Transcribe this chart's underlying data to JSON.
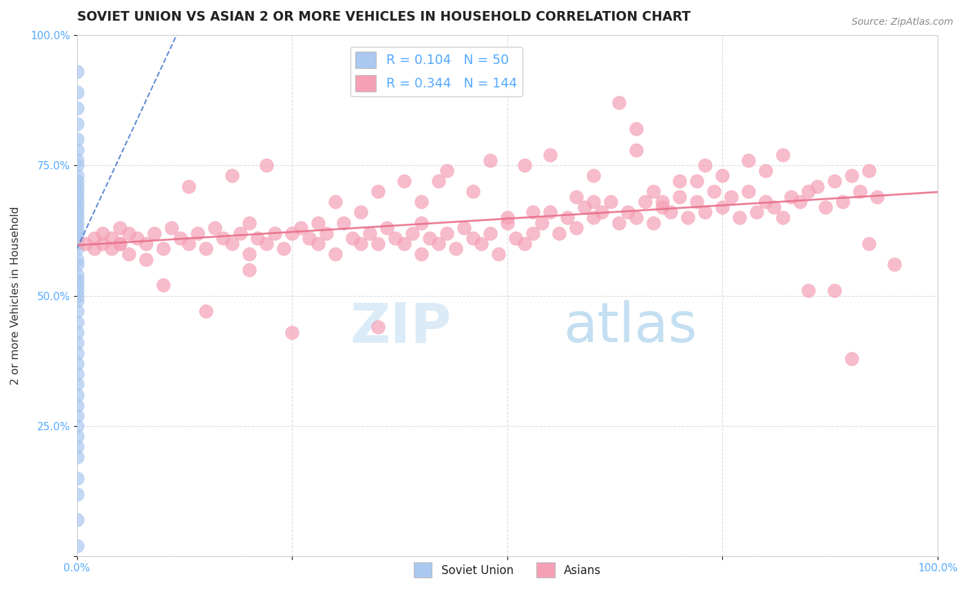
{
  "title": "SOVIET UNION VS ASIAN 2 OR MORE VEHICLES IN HOUSEHOLD CORRELATION CHART",
  "source_text": "Source: ZipAtlas.com",
  "ylabel": "2 or more Vehicles in Household",
  "watermark_zip": "ZIP",
  "watermark_atlas": "atlas",
  "xlim": [
    0.0,
    1.0
  ],
  "ylim": [
    0.0,
    1.0
  ],
  "xticks": [
    0.0,
    0.25,
    0.5,
    0.75,
    1.0
  ],
  "yticks": [
    0.0,
    0.25,
    0.5,
    0.75,
    1.0
  ],
  "xtick_labels": [
    "0.0%",
    "",
    "",
    "",
    "100.0%"
  ],
  "ytick_labels": [
    "",
    "25.0%",
    "50.0%",
    "75.0%",
    "100.0%"
  ],
  "soviet_R": 0.104,
  "soviet_N": 50,
  "asian_R": 0.344,
  "asian_N": 144,
  "soviet_color": "#aac8f0",
  "asian_color": "#f5a0b5",
  "soviet_line_color": "#4477cc",
  "asian_line_color": "#e8708a",
  "tick_color": "#55aaff",
  "title_fontsize": 13.5,
  "background_color": "#ffffff",
  "grid_color": "#cccccc",
  "soviet_points_y": [
    0.93,
    0.89,
    0.86,
    0.83,
    0.8,
    0.78,
    0.76,
    0.75,
    0.73,
    0.72,
    0.71,
    0.7,
    0.69,
    0.68,
    0.67,
    0.66,
    0.65,
    0.64,
    0.63,
    0.62,
    0.61,
    0.6,
    0.59,
    0.57,
    0.56,
    0.54,
    0.53,
    0.52,
    0.51,
    0.5,
    0.49,
    0.47,
    0.45,
    0.43,
    0.41,
    0.39,
    0.37,
    0.35,
    0.33,
    0.31,
    0.29,
    0.27,
    0.25,
    0.23,
    0.21,
    0.19,
    0.15,
    0.12,
    0.07,
    0.02
  ],
  "asian_points_x": [
    0.01,
    0.02,
    0.02,
    0.03,
    0.03,
    0.04,
    0.04,
    0.05,
    0.05,
    0.06,
    0.06,
    0.07,
    0.08,
    0.09,
    0.1,
    0.11,
    0.12,
    0.13,
    0.14,
    0.15,
    0.16,
    0.17,
    0.18,
    0.19,
    0.2,
    0.2,
    0.21,
    0.22,
    0.23,
    0.24,
    0.25,
    0.26,
    0.27,
    0.28,
    0.29,
    0.3,
    0.31,
    0.32,
    0.33,
    0.34,
    0.35,
    0.36,
    0.37,
    0.38,
    0.39,
    0.4,
    0.4,
    0.41,
    0.42,
    0.43,
    0.44,
    0.45,
    0.46,
    0.47,
    0.48,
    0.49,
    0.5,
    0.51,
    0.52,
    0.53,
    0.54,
    0.55,
    0.56,
    0.57,
    0.58,
    0.59,
    0.6,
    0.61,
    0.62,
    0.63,
    0.64,
    0.65,
    0.66,
    0.67,
    0.68,
    0.69,
    0.7,
    0.71,
    0.72,
    0.73,
    0.74,
    0.75,
    0.76,
    0.77,
    0.78,
    0.79,
    0.8,
    0.81,
    0.82,
    0.83,
    0.84,
    0.85,
    0.86,
    0.87,
    0.88,
    0.89,
    0.9,
    0.91,
    0.92,
    0.93,
    0.13,
    0.18,
    0.22,
    0.3,
    0.35,
    0.38,
    0.43,
    0.48,
    0.52,
    0.55,
    0.6,
    0.63,
    0.65,
    0.68,
    0.7,
    0.73,
    0.75,
    0.78,
    0.8,
    0.82,
    0.85,
    0.88,
    0.9,
    0.92,
    0.95,
    0.65,
    0.35,
    0.42,
    0.5,
    0.58,
    0.28,
    0.33,
    0.4,
    0.46,
    0.53,
    0.2,
    0.25,
    0.15,
    0.1,
    0.08,
    0.05,
    0.6,
    0.67,
    0.72
  ],
  "asian_points_y": [
    0.6,
    0.61,
    0.59,
    0.62,
    0.6,
    0.61,
    0.59,
    0.63,
    0.6,
    0.62,
    0.58,
    0.61,
    0.6,
    0.62,
    0.59,
    0.63,
    0.61,
    0.6,
    0.62,
    0.59,
    0.63,
    0.61,
    0.6,
    0.62,
    0.58,
    0.64,
    0.61,
    0.6,
    0.62,
    0.59,
    0.62,
    0.63,
    0.61,
    0.6,
    0.62,
    0.58,
    0.64,
    0.61,
    0.6,
    0.62,
    0.44,
    0.63,
    0.61,
    0.6,
    0.62,
    0.58,
    0.64,
    0.61,
    0.6,
    0.62,
    0.59,
    0.63,
    0.61,
    0.6,
    0.62,
    0.58,
    0.64,
    0.61,
    0.6,
    0.62,
    0.64,
    0.66,
    0.62,
    0.65,
    0.63,
    0.67,
    0.65,
    0.66,
    0.68,
    0.64,
    0.66,
    0.65,
    0.68,
    0.64,
    0.67,
    0.66,
    0.69,
    0.65,
    0.68,
    0.66,
    0.7,
    0.67,
    0.69,
    0.65,
    0.7,
    0.66,
    0.68,
    0.67,
    0.65,
    0.69,
    0.68,
    0.7,
    0.71,
    0.67,
    0.72,
    0.68,
    0.73,
    0.7,
    0.74,
    0.69,
    0.71,
    0.73,
    0.75,
    0.68,
    0.7,
    0.72,
    0.74,
    0.76,
    0.75,
    0.77,
    0.73,
    0.87,
    0.82,
    0.68,
    0.72,
    0.75,
    0.73,
    0.76,
    0.74,
    0.77,
    0.51,
    0.51,
    0.38,
    0.6,
    0.56,
    0.78,
    0.6,
    0.72,
    0.65,
    0.69,
    0.64,
    0.66,
    0.68,
    0.7,
    0.66,
    0.55,
    0.43,
    0.47,
    0.52,
    0.57,
    0.6,
    0.68,
    0.7,
    0.72
  ]
}
